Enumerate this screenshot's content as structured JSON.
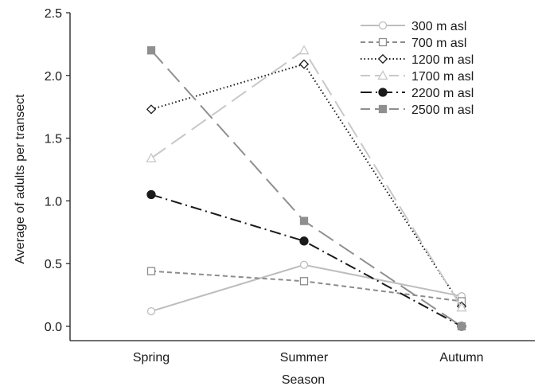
{
  "chart_data": {
    "type": "line",
    "xlabel": "Season",
    "ylabel": "Average of adults per transect",
    "categories": [
      "Spring",
      "Summer",
      "Autumn"
    ],
    "ylim": [
      0,
      2.5
    ],
    "yticks": [
      "0.0",
      "0.5",
      "1.0",
      "1.5",
      "2.0",
      "2.5"
    ],
    "grid": false,
    "legend_position": "top-right",
    "series": [
      {
        "name": "300 m asl",
        "values": [
          0.12,
          0.49,
          0.24
        ],
        "color": "#bdbdbd",
        "marker": "circle-open",
        "dash": "solid"
      },
      {
        "name": "700 m asl",
        "values": [
          0.44,
          0.36,
          0.2
        ],
        "color": "#8c8c8c",
        "marker": "square-open",
        "dash": "dash"
      },
      {
        "name": "1200 m asl",
        "values": [
          1.73,
          2.09,
          0.16
        ],
        "color": "#1a1a1a",
        "marker": "diamond-open",
        "dash": "dot"
      },
      {
        "name": "1700 m asl",
        "values": [
          1.34,
          2.2,
          0.15
        ],
        "color": "#c8c8c8",
        "marker": "triangle-open",
        "dash": "longdash"
      },
      {
        "name": "2200 m asl",
        "values": [
          1.05,
          0.68,
          0.0
        ],
        "color": "#1a1a1a",
        "marker": "circle-filled",
        "dash": "dashdot"
      },
      {
        "name": "2500 m asl",
        "values": [
          2.2,
          0.84,
          0.0
        ],
        "color": "#8f8f8f",
        "marker": "square-filled",
        "dash": "longdash"
      }
    ]
  }
}
